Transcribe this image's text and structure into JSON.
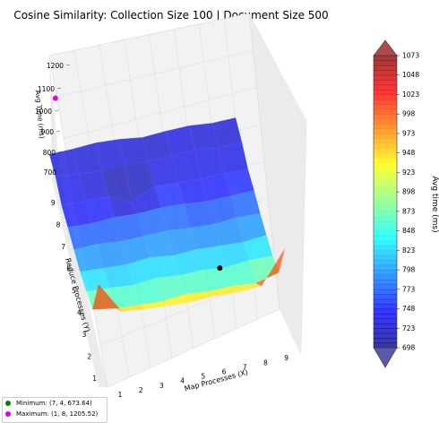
{
  "chart_data": {
    "type": "surface3d",
    "title": "Cosine Similarity: Collection Size 100 | Document Size 500",
    "xlabel": "Map Processes (X)",
    "ylabel": "Reduce Processes (Y)",
    "zlabel": "Avg Time (ms)",
    "x_ticks": [
      "1",
      "2",
      "3",
      "4",
      "5",
      "6",
      "7",
      "8",
      "9"
    ],
    "y_ticks": [
      "1",
      "2",
      "3",
      "4",
      "5",
      "6",
      "7",
      "8",
      "9"
    ],
    "z_ticks": [
      "700",
      "800",
      "900",
      "1000",
      "1100",
      "1200"
    ],
    "x": [
      1,
      2,
      3,
      4,
      5,
      6,
      7,
      8,
      9
    ],
    "y": [
      1,
      2,
      3,
      4,
      5,
      6,
      7,
      8,
      9
    ],
    "z": [
      [
        1205,
        1020,
        1005,
        1000,
        995,
        1005,
        1000,
        1010,
        1205
      ],
      [
        900,
        880,
        875,
        870,
        885,
        875,
        880,
        870,
        905
      ],
      [
        850,
        845,
        835,
        850,
        840,
        845,
        835,
        850,
        850
      ],
      [
        810,
        805,
        800,
        815,
        800,
        810,
        805,
        800,
        815
      ],
      [
        785,
        790,
        780,
        785,
        790,
        780,
        775,
        790,
        785
      ],
      [
        760,
        755,
        765,
        760,
        770,
        765,
        755,
        760,
        765
      ],
      [
        730,
        735,
        730,
        674,
        740,
        735,
        730,
        740,
        735
      ],
      [
        745,
        735,
        725,
        740,
        730,
        735,
        745,
        730,
        740
      ],
      [
        720,
        725,
        735,
        730,
        715,
        725,
        730,
        720,
        725
      ]
    ],
    "colorbar": {
      "label": "Avg time (ms)",
      "ticks": [
        "1073",
        "1048",
        "1023",
        "998",
        "973",
        "948",
        "923",
        "898",
        "873",
        "848",
        "823",
        "798",
        "773",
        "748",
        "723",
        "698"
      ],
      "range": [
        698,
        1073
      ],
      "colormap": "jet"
    },
    "markers": {
      "minimum": {
        "x": 7,
        "y": 4,
        "z": 673.64,
        "color": "#007f00",
        "label": "Minimum: (7, 4, 673.64)"
      },
      "maximum": {
        "x": 1,
        "y": 8,
        "z": 1205.52,
        "color": "#e000e0",
        "label": "Maximum: (1, 8, 1205.52)"
      }
    },
    "grid": true,
    "legend_position": "bottom-left"
  }
}
